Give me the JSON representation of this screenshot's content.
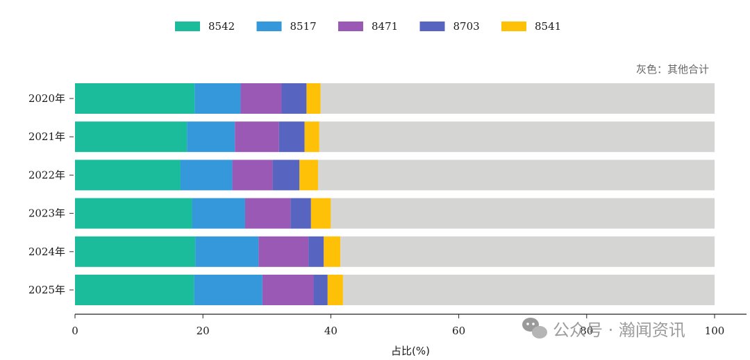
{
  "chart_data": {
    "type": "bar",
    "orientation": "horizontal",
    "stacked": true,
    "categories": [
      "2020年",
      "2021年",
      "2022年",
      "2023年",
      "2024年",
      "2025年"
    ],
    "series": [
      {
        "name": "8542",
        "color": "#1abc9c",
        "values": [
          18.7,
          17.5,
          16.5,
          18.3,
          18.8,
          18.6
        ]
      },
      {
        "name": "8517",
        "color": "#3498db",
        "values": [
          7.2,
          7.5,
          8.1,
          8.3,
          9.9,
          10.7
        ]
      },
      {
        "name": "8471",
        "color": "#9b59b6",
        "values": [
          6.4,
          6.9,
          6.3,
          7.1,
          7.8,
          8.0
        ]
      },
      {
        "name": "8703",
        "color": "#5765c0",
        "values": [
          3.9,
          4.0,
          4.2,
          3.2,
          2.4,
          2.2
        ]
      },
      {
        "name": "8541",
        "color": "#ffc107",
        "values": [
          2.2,
          2.3,
          2.9,
          3.1,
          2.6,
          2.4
        ]
      },
      {
        "color": "#d5d5d3",
        "values": [
          61.6,
          61.8,
          62.0,
          60.0,
          58.5,
          58.1
        ]
      }
    ],
    "xlim": [
      0,
      100
    ],
    "xticks": [
      "0",
      "20",
      "40",
      "60",
      "80",
      "100"
    ],
    "xlabel": "占比(%)",
    "ylabel": "",
    "annotation": "灰色：其他合计",
    "legend_position": "top-center",
    "grid": false
  },
  "watermark": {
    "icon": "wechat-icon",
    "text": "公众号 · 瀚闻资讯"
  }
}
